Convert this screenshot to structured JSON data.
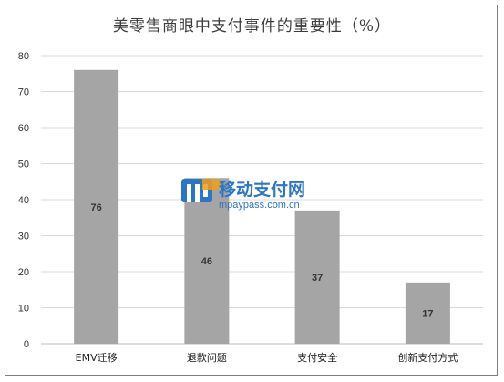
{
  "chart_data": {
    "type": "bar",
    "title": "美零售商眼中支付事件的重要性（%）",
    "categories": [
      "EMV迁移",
      "退款问题",
      "支付安全",
      "创新支付方式"
    ],
    "values": [
      76,
      46,
      37,
      17
    ],
    "ylim": [
      0,
      80
    ],
    "yticks": [
      0,
      10,
      20,
      30,
      40,
      50,
      60,
      70,
      80
    ],
    "grid": true,
    "bar_color": "#a5a5a5",
    "xlabel": "",
    "ylabel": ""
  },
  "watermark": {
    "name": "移动支付网",
    "url": "mpaypass.com.cn",
    "color": "#2b77c5",
    "accent": "#f39c12"
  }
}
